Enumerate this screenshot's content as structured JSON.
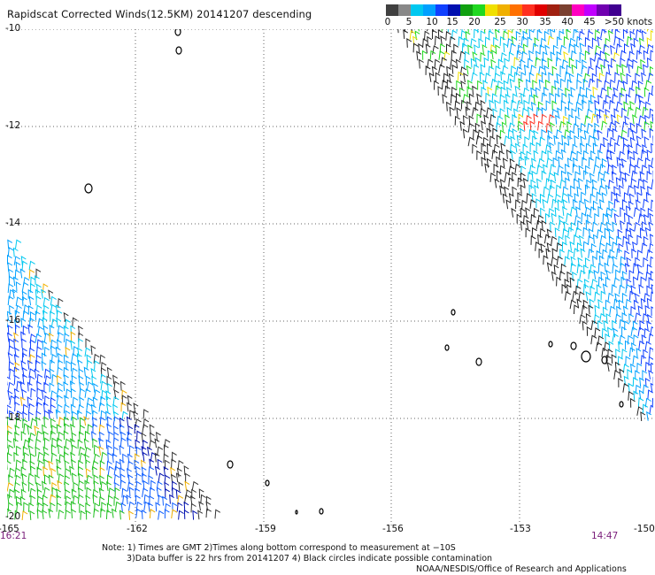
{
  "title": "Rapidscat Corrected Winds(12.5KM) 20141207 descending",
  "legend": {
    "colors": [
      "#404040",
      "#888888",
      "#00c8f0",
      "#00a0ff",
      "#1040ff",
      "#0010b0",
      "#10a010",
      "#20d820",
      "#f0e000",
      "#f0b000",
      "#ff7000",
      "#ff3020",
      "#e00000",
      "#a02010",
      "#7a4030",
      "#ff00c0",
      "#c000ff",
      "#7000b0",
      "#400090"
    ],
    "labels": [
      "0",
      "5",
      "10",
      "15",
      "20",
      "25",
      "30",
      "35",
      "40",
      "45",
      ">50 knots"
    ]
  },
  "axes": {
    "lat_labels": [
      "-10",
      "-12",
      "-14",
      "-16",
      "-18",
      "-20"
    ],
    "lon_labels": [
      "-165",
      "-162",
      "-159",
      "-156",
      "-153",
      "-150"
    ]
  },
  "times": {
    "start": "16:21",
    "end": "14:47"
  },
  "notes": {
    "line1": "Note: 1) Times are GMT 2)Times along bottom correspond to measurement at −10S",
    "line2": "3)Data buffer is 22 hrs from 20141207 4) Black circles indicate possible contamination"
  },
  "credit": "NOAA/NESDIS/Office of Research and Applications",
  "icons": [
    "wind-barb-icon",
    "island-icon"
  ]
}
